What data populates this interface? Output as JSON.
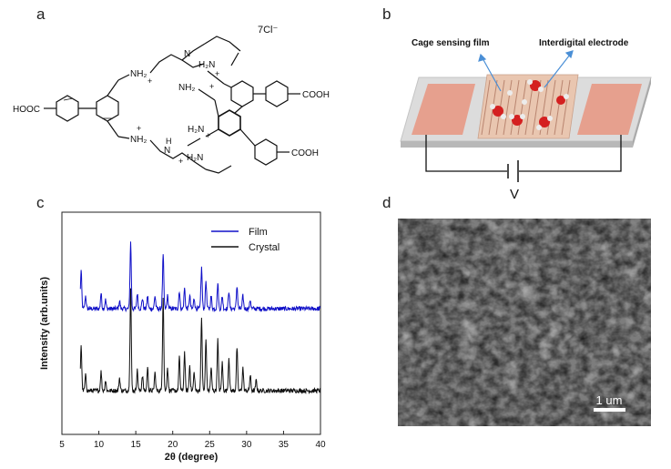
{
  "figure": {
    "panel_labels": {
      "a": "a",
      "b": "b",
      "c": "c",
      "d": "d"
    }
  },
  "panel_a": {
    "counter_ion": "7Cl⁻",
    "left_group": "HOOC",
    "right_groups": [
      "COOH",
      "COOH"
    ],
    "nitrogen_labels": [
      "N",
      "NH₂",
      "NH₂",
      "H₂N",
      "H₂N",
      "N",
      "H",
      "H₂N",
      "NH₂",
      "H₂N",
      "N"
    ],
    "charge_sign": "+"
  },
  "panel_b": {
    "label_film": "Cage sensing film",
    "label_electrode": "Interdigital electrode",
    "voltage_label": "V",
    "colors": {
      "pad": "#e9a08e",
      "substrate": "#d8d8d8",
      "film": "#e8c4ae",
      "molecule_red": "#d42020"
    }
  },
  "chart_data": {
    "type": "line",
    "xlabel": "2θ (degree)",
    "ylabel": "Intensity (arb.units)",
    "xlim": [
      5,
      40
    ],
    "xticks": [
      5,
      10,
      15,
      20,
      25,
      30,
      35,
      40
    ],
    "grid": false,
    "legend_position": "top-center",
    "series": [
      {
        "name": "Film",
        "color": "#1010c8",
        "offset": 0.7,
        "peaks": [
          [
            7.6,
            0.3
          ],
          [
            8.2,
            0.1
          ],
          [
            10.3,
            0.12
          ],
          [
            10.9,
            0.07
          ],
          [
            12.8,
            0.06
          ],
          [
            14.3,
            0.52
          ],
          [
            15.2,
            0.12
          ],
          [
            15.9,
            0.08
          ],
          [
            16.6,
            0.1
          ],
          [
            17.6,
            0.1
          ],
          [
            18.7,
            0.42
          ],
          [
            19.3,
            0.1
          ],
          [
            20.9,
            0.14
          ],
          [
            21.6,
            0.16
          ],
          [
            22.3,
            0.1
          ],
          [
            22.9,
            0.08
          ],
          [
            23.9,
            0.32
          ],
          [
            24.5,
            0.22
          ],
          [
            25.2,
            0.1
          ],
          [
            26.1,
            0.2
          ],
          [
            26.7,
            0.1
          ],
          [
            27.6,
            0.14
          ],
          [
            28.7,
            0.18
          ],
          [
            29.5,
            0.1
          ],
          [
            30.5,
            0.07
          ]
        ]
      },
      {
        "name": "Crystal",
        "color": "#111111",
        "offset": 0.0,
        "peaks": [
          [
            7.6,
            0.36
          ],
          [
            8.2,
            0.12
          ],
          [
            10.3,
            0.15
          ],
          [
            10.9,
            0.08
          ],
          [
            12.8,
            0.1
          ],
          [
            14.3,
            0.8
          ],
          [
            15.2,
            0.16
          ],
          [
            15.9,
            0.12
          ],
          [
            16.6,
            0.18
          ],
          [
            17.6,
            0.14
          ],
          [
            18.7,
            0.74
          ],
          [
            19.3,
            0.18
          ],
          [
            20.9,
            0.26
          ],
          [
            21.6,
            0.3
          ],
          [
            22.3,
            0.2
          ],
          [
            22.9,
            0.14
          ],
          [
            23.9,
            0.56
          ],
          [
            24.5,
            0.4
          ],
          [
            25.2,
            0.18
          ],
          [
            26.1,
            0.4
          ],
          [
            26.7,
            0.22
          ],
          [
            27.6,
            0.26
          ],
          [
            28.7,
            0.34
          ],
          [
            29.5,
            0.18
          ],
          [
            30.5,
            0.12
          ],
          [
            31.3,
            0.08
          ]
        ]
      }
    ]
  },
  "panel_d": {
    "scale_bar_label": "1 um"
  }
}
